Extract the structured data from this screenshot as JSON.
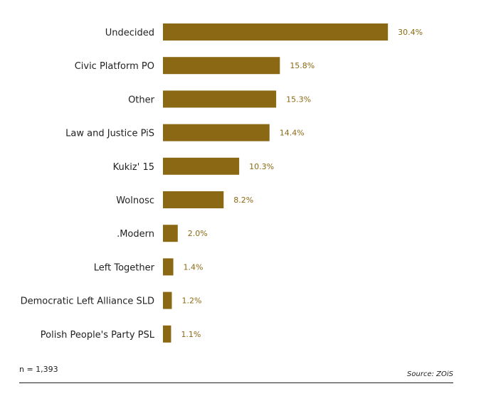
{
  "chart_data": {
    "type": "bar",
    "orientation": "horizontal",
    "categories": [
      "Undecided",
      "Civic Platform PO",
      "Other",
      "Law and Justice PiS",
      "Kukiz' 15",
      "Wolnosc",
      ".Modern",
      "Left Together",
      "Democratic Left Alliance SLD",
      "Polish People's Party PSL"
    ],
    "values": [
      30.4,
      15.8,
      15.3,
      14.4,
      10.3,
      8.2,
      2.0,
      1.4,
      1.2,
      1.1
    ],
    "value_labels": [
      "30.4%",
      "15.8%",
      "15.3%",
      "14.4%",
      "10.3%",
      "8.2%",
      "2.0%",
      "1.4%",
      "1.2%",
      "1.1%"
    ],
    "unit": "%",
    "bar_color": "#8B6914",
    "value_label_color": "#8B6914",
    "grid": false,
    "legend": "none"
  },
  "footnote": "n = 1,393",
  "source": "Source: ZOiS"
}
